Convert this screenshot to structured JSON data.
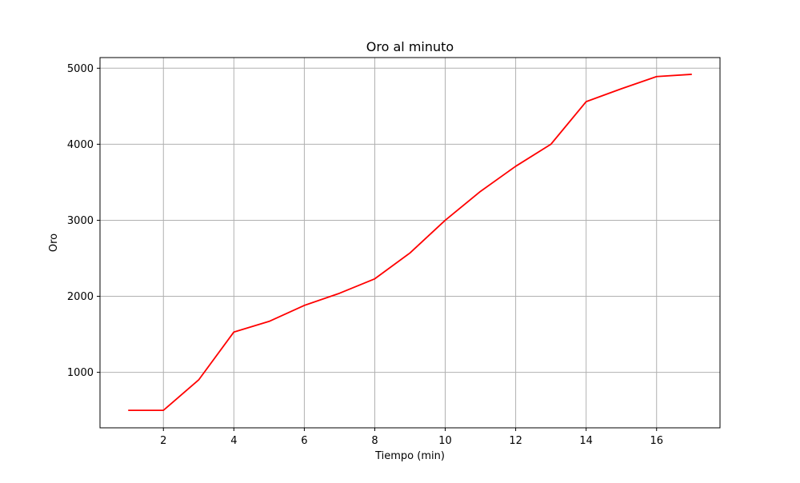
{
  "chart_data": {
    "type": "line",
    "title": "Oro al minuto",
    "xlabel": "Tiempo (min)",
    "ylabel": "Oro",
    "xlim": [
      0.2,
      17.8
    ],
    "ylim": [
      270,
      5140
    ],
    "xticks": [
      2,
      4,
      6,
      8,
      10,
      12,
      14,
      16
    ],
    "yticks": [
      1000,
      2000,
      3000,
      4000,
      5000
    ],
    "grid": true,
    "line_color": "#ff0000",
    "grid_color": "#b0b0b0",
    "series": [
      {
        "x": [
          1,
          2,
          3,
          4,
          5,
          6,
          7,
          8,
          9,
          10,
          11,
          12,
          13,
          14,
          15,
          16,
          17
        ],
        "y": [
          500,
          500,
          900,
          1530,
          1670,
          1880,
          2040,
          2230,
          2570,
          3000,
          3380,
          3710,
          4000,
          4560,
          4730,
          4890,
          4920
        ]
      }
    ]
  }
}
